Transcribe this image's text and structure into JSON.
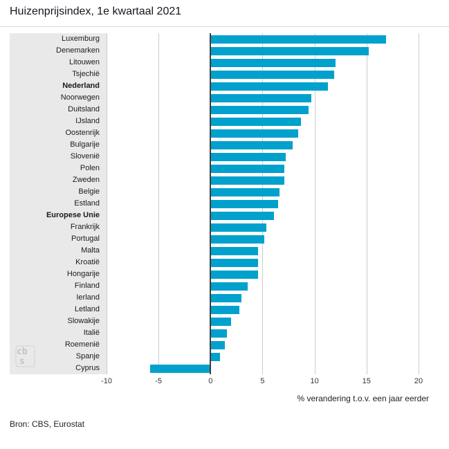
{
  "title": "Huizenprijsindex, 1e kwartaal 2021",
  "source": "Bron: CBS, Eurostat",
  "logo": {
    "name": "cbs-logo",
    "text_top": "cb",
    "text_bottom": "s"
  },
  "colors": {
    "bar": "#00a1cd",
    "label_panel_bg": "#e9e9e9",
    "gridline": "#cccccc",
    "zero_line": "#3d3d3d",
    "title_text": "#15151f"
  },
  "chart_data": {
    "type": "bar",
    "orientation": "horizontal",
    "title": "Huizenprijsindex, 1e kwartaal 2021",
    "xlabel": "% verandering t.o.v. een jaar eerder",
    "ylabel": "",
    "xlim": [
      -10,
      21
    ],
    "xticks": [
      -10,
      -5,
      0,
      5,
      10,
      15,
      20
    ],
    "grid": true,
    "bold_categories": [
      "Nederland",
      "Europese Unie"
    ],
    "categories": [
      "Luxemburg",
      "Denemarken",
      "Litouwen",
      "Tsjechië",
      "Nederland",
      "Noorwegen",
      "Duitsland",
      "IJsland",
      "Oostenrijk",
      "Bulgarije",
      "Slovenië",
      "Polen",
      "Zweden",
      "Belgie",
      "Estland",
      "Europese Unie",
      "Frankrijk",
      "Portugal",
      "Malta",
      "Kroatië",
      "Hongarije",
      "Finland",
      "Ierland",
      "Letland",
      "Slowakije",
      "Italië",
      "Roemenië",
      "Spanje",
      "Cyprus"
    ],
    "values": [
      16.9,
      15.2,
      12.0,
      11.9,
      11.3,
      9.7,
      9.4,
      8.7,
      8.4,
      7.9,
      7.2,
      7.1,
      7.1,
      6.6,
      6.5,
      6.1,
      5.4,
      5.2,
      4.6,
      4.6,
      4.6,
      3.6,
      3.0,
      2.8,
      2.0,
      1.6,
      1.4,
      0.9,
      -5.8
    ]
  }
}
